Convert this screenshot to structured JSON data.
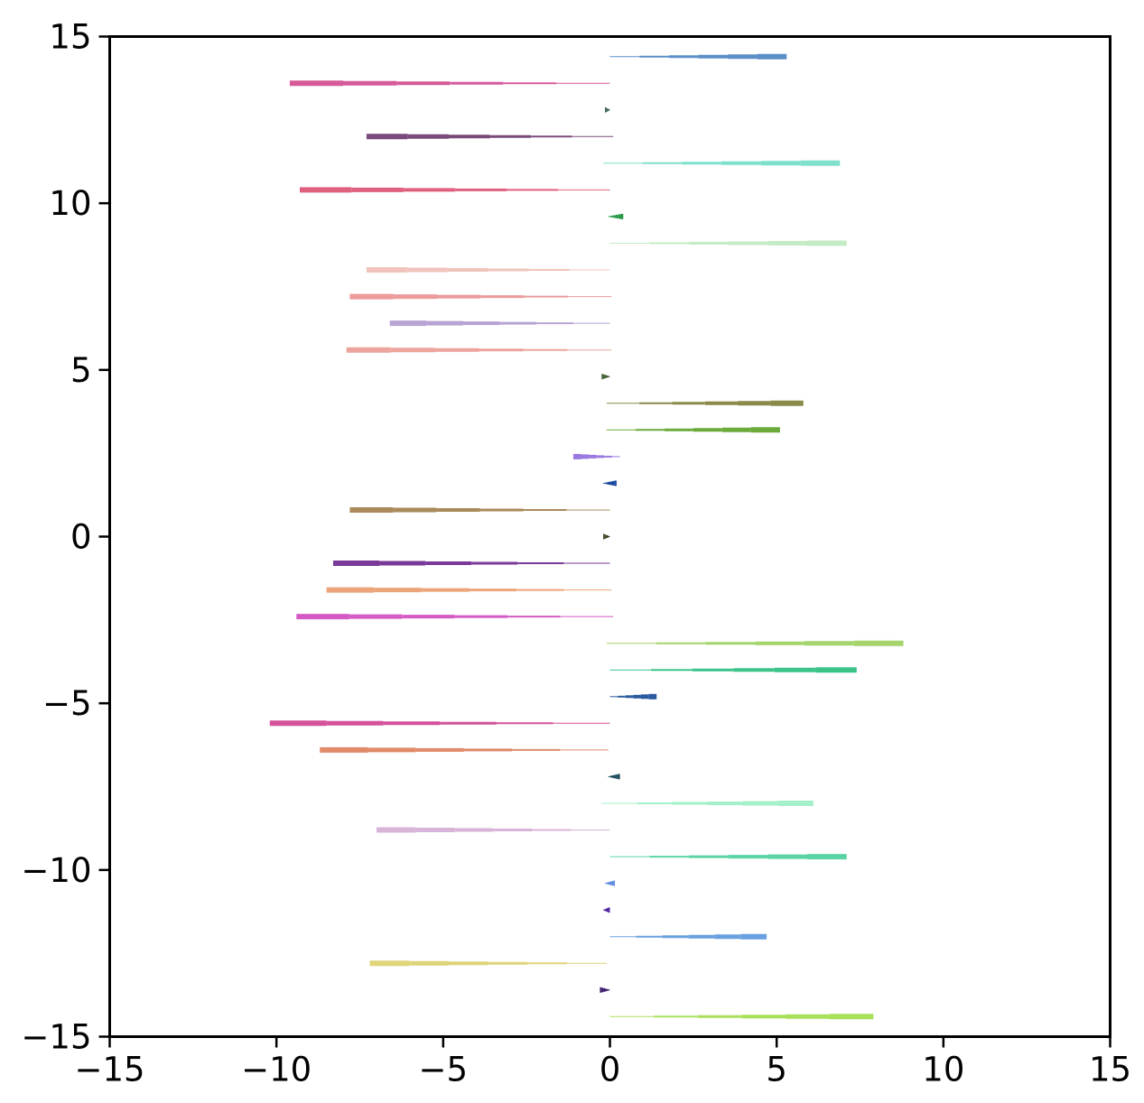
{
  "chart_data": {
    "type": "line",
    "title": "",
    "xlabel": "",
    "ylabel": "",
    "xlim": [
      -15,
      15
    ],
    "ylim": [
      -15,
      15
    ],
    "grid": false,
    "legend": "none",
    "x_ticks": [
      {
        "value": -15,
        "label": "−15"
      },
      {
        "value": -10,
        "label": "−10"
      },
      {
        "value": -5,
        "label": "−5"
      },
      {
        "value": 0,
        "label": "0"
      },
      {
        "value": 5,
        "label": "5"
      },
      {
        "value": 10,
        "label": "10"
      },
      {
        "value": 15,
        "label": "15"
      }
    ],
    "y_ticks": [
      {
        "value": 15,
        "label": "15"
      },
      {
        "value": 10,
        "label": "10"
      },
      {
        "value": 5,
        "label": "5"
      },
      {
        "value": 0,
        "label": "0"
      },
      {
        "value": -5,
        "label": "−5"
      },
      {
        "value": -10,
        "label": "−10"
      },
      {
        "value": -15,
        "label": "−15"
      }
    ],
    "series": [
      {
        "y": 14.4,
        "x_start": 0.0,
        "x_end": 5.3,
        "color": "#5a8fc8"
      },
      {
        "y": 13.6,
        "x_start": 0.0,
        "x_end": -9.6,
        "color": "#d65a9a"
      },
      {
        "y": 12.8,
        "x_start": 0.0,
        "x_end": -0.15,
        "color": "#2f5a4a"
      },
      {
        "y": 12.0,
        "x_start": 0.1,
        "x_end": -7.3,
        "color": "#7a4a7a"
      },
      {
        "y": 11.2,
        "x_start": -0.2,
        "x_end": 6.9,
        "color": "#7fe0cc"
      },
      {
        "y": 10.4,
        "x_start": 0.0,
        "x_end": -9.3,
        "color": "#e0607f"
      },
      {
        "y": 9.6,
        "x_start": -0.05,
        "x_end": 0.4,
        "color": "#2a9a4a"
      },
      {
        "y": 8.8,
        "x_start": 0.0,
        "x_end": 7.1,
        "color": "#c4ecc4"
      },
      {
        "y": 8.0,
        "x_start": 0.0,
        "x_end": -7.3,
        "color": "#f0c4bc"
      },
      {
        "y": 7.2,
        "x_start": 0.05,
        "x_end": -7.8,
        "color": "#ec9a9a"
      },
      {
        "y": 6.4,
        "x_start": 0.0,
        "x_end": -6.6,
        "color": "#b8a4d4"
      },
      {
        "y": 5.6,
        "x_start": 0.05,
        "x_end": -7.9,
        "color": "#eca49c"
      },
      {
        "y": 4.8,
        "x_start": 0.0,
        "x_end": -0.25,
        "color": "#3a5a2a"
      },
      {
        "y": 4.0,
        "x_start": -0.1,
        "x_end": 5.8,
        "color": "#8a8a4a"
      },
      {
        "y": 3.2,
        "x_start": -0.1,
        "x_end": 5.1,
        "color": "#6aaa3a"
      },
      {
        "y": 2.4,
        "x_start": 0.3,
        "x_end": -1.1,
        "color": "#9a7ae0"
      },
      {
        "y": 1.6,
        "x_start": -0.2,
        "x_end": 0.2,
        "color": "#1a4aa0"
      },
      {
        "y": 0.8,
        "x_start": 0.0,
        "x_end": -7.8,
        "color": "#aa8a5a"
      },
      {
        "y": 0.0,
        "x_start": 0.0,
        "x_end": -0.2,
        "color": "#3a3a1a"
      },
      {
        "y": -0.8,
        "x_start": 0.0,
        "x_end": -8.3,
        "color": "#7a3a9a"
      },
      {
        "y": -1.6,
        "x_start": 0.05,
        "x_end": -8.5,
        "color": "#eca47a"
      },
      {
        "y": -2.4,
        "x_start": 0.1,
        "x_end": -9.4,
        "color": "#d45ac4"
      },
      {
        "y": -3.2,
        "x_start": -0.1,
        "x_end": 8.8,
        "color": "#a4d46a"
      },
      {
        "y": -4.0,
        "x_start": 0.0,
        "x_end": 7.4,
        "color": "#3ac48a"
      },
      {
        "y": -4.8,
        "x_start": 0.0,
        "x_end": 1.4,
        "color": "#2a5aa0"
      },
      {
        "y": -5.6,
        "x_start": 0.0,
        "x_end": -10.2,
        "color": "#d4529a"
      },
      {
        "y": -6.4,
        "x_start": -0.05,
        "x_end": -8.7,
        "color": "#e08a6a"
      },
      {
        "y": -7.2,
        "x_start": -0.05,
        "x_end": 0.3,
        "color": "#1a4a5a"
      },
      {
        "y": -8.0,
        "x_start": -0.25,
        "x_end": 6.1,
        "color": "#a4f0c8"
      },
      {
        "y": -8.8,
        "x_start": 0.0,
        "x_end": -7.0,
        "color": "#d8b4d8"
      },
      {
        "y": -9.6,
        "x_start": 0.0,
        "x_end": 7.1,
        "color": "#5ad4a4"
      },
      {
        "y": -10.4,
        "x_start": -0.15,
        "x_end": 0.15,
        "color": "#5a8ae0"
      },
      {
        "y": -11.2,
        "x_start": -0.2,
        "x_end": 0.0,
        "color": "#4a1aa0"
      },
      {
        "y": -12.0,
        "x_start": 0.0,
        "x_end": 4.7,
        "color": "#6aa0e0"
      },
      {
        "y": -12.8,
        "x_start": -0.1,
        "x_end": -7.2,
        "color": "#e0d47a"
      },
      {
        "y": -13.6,
        "x_start": 0.0,
        "x_end": -0.3,
        "color": "#3a1a6a"
      },
      {
        "y": -14.4,
        "x_start": 0.0,
        "x_end": 7.9,
        "color": "#a8e05a"
      }
    ]
  }
}
